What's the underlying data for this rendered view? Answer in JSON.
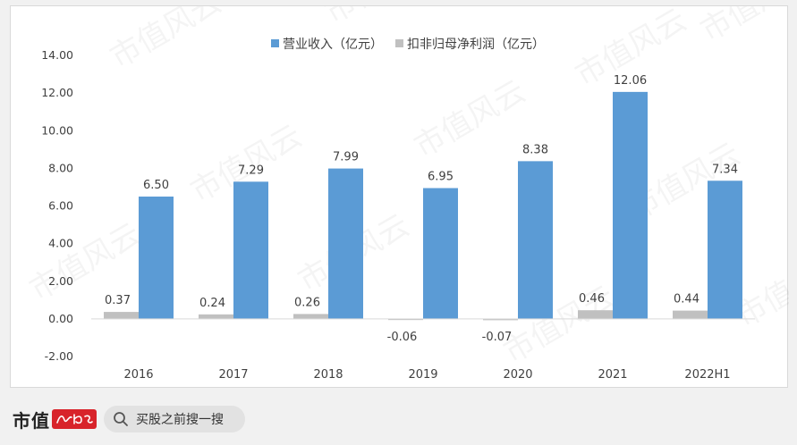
{
  "watermark": "市值风云",
  "chart_data": {
    "type": "bar",
    "categories": [
      "2016",
      "2017",
      "2018",
      "2019",
      "2020",
      "2021",
      "2022H1"
    ],
    "series": [
      {
        "name": "扣非归母净利润（亿元）",
        "values": [
          0.37,
          0.24,
          0.26,
          -0.06,
          -0.07,
          0.46,
          0.44
        ],
        "color": "#c0c0c0"
      },
      {
        "name": "营业收入（亿元）",
        "values": [
          6.5,
          7.29,
          7.99,
          6.95,
          8.38,
          12.06,
          7.34
        ],
        "color": "#5b9bd5"
      }
    ],
    "legend_order": [
      1,
      0
    ],
    "legend_position": "top-center",
    "ylim": [
      -2,
      14
    ],
    "yticks": [
      "-2.00",
      "0.00",
      "2.00",
      "4.00",
      "6.00",
      "8.00",
      "10.00",
      "12.00",
      "14.00"
    ],
    "grid": false,
    "title": "",
    "xlabel": "",
    "ylabel": ""
  },
  "footer": {
    "brand": "市值",
    "search_placeholder": "买股之前搜一搜"
  }
}
